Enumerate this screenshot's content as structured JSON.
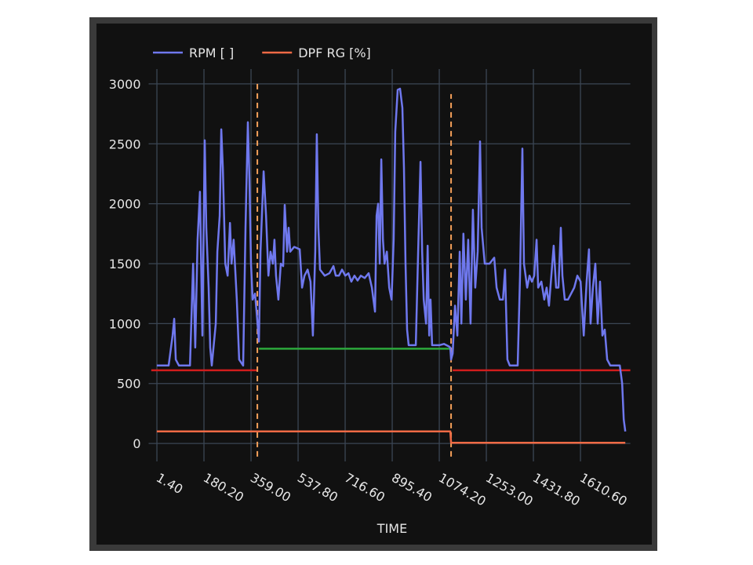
{
  "chart_data": {
    "type": "line",
    "xlabel": "TIME",
    "xlim": [
      -30,
      1800
    ],
    "ylim": [
      -150,
      3150
    ],
    "xticks": [
      {
        "value": 1.4,
        "label": "1.40"
      },
      {
        "value": 180.2,
        "label": "180.20"
      },
      {
        "value": 359,
        "label": "359.00"
      },
      {
        "value": 537.8,
        "label": "537.80"
      },
      {
        "value": 716.6,
        "label": "716.60"
      },
      {
        "value": 895.4,
        "label": "895.40"
      },
      {
        "value": 1074.2,
        "label": "1074.20"
      },
      {
        "value": 1253,
        "label": "1253.00"
      },
      {
        "value": 1431.8,
        "label": "1431.80"
      },
      {
        "value": 1610.6,
        "label": "1610.60"
      }
    ],
    "yticks": [
      0,
      500,
      1000,
      1500,
      2000,
      2500,
      3000
    ],
    "grid": true,
    "legend": "top-left",
    "series": [
      {
        "name": "RPM [ ]",
        "color": "#6f78ee",
        "x": [
          1,
          46,
          61,
          67,
          73,
          85,
          127,
          139,
          147,
          156,
          165,
          174,
          183,
          189,
          198,
          204,
          210,
          225,
          231,
          240,
          246,
          252,
          261,
          270,
          279,
          285,
          293,
          305,
          314,
          329,
          338,
          347,
          353,
          359,
          365,
          374,
          380,
          389,
          395,
          407,
          416,
          425,
          433,
          442,
          448,
          454,
          463,
          472,
          481,
          487,
          496,
          502,
          508,
          523,
          544,
          553,
          562,
          574,
          585,
          594,
          603,
          609,
          615,
          621,
          639,
          657,
          672,
          681,
          693,
          705,
          717,
          729,
          740,
          752,
          764,
          776,
          791,
          806,
          818,
          830,
          836,
          842,
          848,
          854,
          860,
          866,
          875,
          884,
          893,
          901,
          907,
          916,
          925,
          934,
          940,
          946,
          952,
          958,
          970,
          985,
          994,
          1003,
          1009,
          1015,
          1024,
          1030,
          1036,
          1041,
          1047,
          1059,
          1074,
          1092,
          1110,
          1116,
          1119,
          1125,
          1134,
          1143,
          1152,
          1158,
          1166,
          1175,
          1184,
          1193,
          1202,
          1211,
          1220,
          1229,
          1235,
          1247,
          1265,
          1283,
          1292,
          1304,
          1316,
          1324,
          1333,
          1342,
          1372,
          1381,
          1390,
          1396,
          1408,
          1417,
          1426,
          1435,
          1444,
          1450,
          1462,
          1473,
          1482,
          1491,
          1500,
          1509,
          1518,
          1527,
          1536,
          1542,
          1551,
          1563,
          1575,
          1587,
          1599,
          1611,
          1623,
          1634,
          1643,
          1649,
          1658,
          1667,
          1676,
          1685,
          1694,
          1703,
          1712,
          1724,
          1760,
          1769,
          1775,
          1781
        ],
        "values": [
          650,
          650,
          900,
          1040,
          700,
          650,
          650,
          1500,
          800,
          1700,
          2100,
          900,
          2530,
          1800,
          1300,
          800,
          650,
          1000,
          1600,
          1900,
          2620,
          2300,
          1500,
          1400,
          1840,
          1500,
          1700,
          1200,
          700,
          650,
          1800,
          2680,
          2200,
          1500,
          1200,
          1250,
          1100,
          850,
          1600,
          2270,
          1900,
          1400,
          1600,
          1500,
          1700,
          1400,
          1200,
          1500,
          1480,
          1990,
          1600,
          1800,
          1600,
          1640,
          1620,
          1300,
          1400,
          1450,
          1350,
          900,
          1600,
          2580,
          1800,
          1450,
          1400,
          1420,
          1480,
          1400,
          1400,
          1450,
          1400,
          1420,
          1350,
          1400,
          1360,
          1400,
          1380,
          1420,
          1300,
          1100,
          1900,
          2000,
          1500,
          2370,
          1700,
          1500,
          1600,
          1300,
          1200,
          1700,
          2600,
          2950,
          2960,
          2800,
          2300,
          1500,
          950,
          820,
          820,
          820,
          1600,
          2350,
          1600,
          1200,
          1000,
          1650,
          900,
          1200,
          820,
          820,
          820,
          830,
          810,
          800,
          700,
          750,
          1150,
          900,
          1600,
          1000,
          1750,
          1200,
          1700,
          1000,
          1950,
          1300,
          1600,
          2520,
          1800,
          1500,
          1500,
          1550,
          1300,
          1200,
          1200,
          1450,
          700,
          650,
          650,
          1400,
          2460,
          1500,
          1300,
          1400,
          1350,
          1400,
          1700,
          1300,
          1350,
          1200,
          1300,
          1150,
          1400,
          1650,
          1300,
          1300,
          1800,
          1400,
          1200,
          1200,
          1250,
          1300,
          1400,
          1350,
          900,
          1350,
          1620,
          1000,
          1300,
          1500,
          1000,
          1350,
          900,
          950,
          700,
          650,
          650,
          500,
          200,
          100
        ]
      },
      {
        "name": "DPF RG [%]",
        "color": "#ef6a45",
        "x": [
          1,
          1116,
          1119,
          1781
        ],
        "values": [
          100,
          100,
          5,
          5
        ]
      }
    ],
    "hlines": [
      {
        "y": 610,
        "x0": -20,
        "x1": 385,
        "color": "#d01c1c"
      },
      {
        "y": 790,
        "x0": 389,
        "x1": 1116,
        "color": "#2ca83c"
      },
      {
        "y": 610,
        "x0": 1125,
        "x1": 1800,
        "color": "#d01c1c"
      }
    ],
    "vlines": [
      {
        "x": 383,
        "y0": -110,
        "y1": 3020,
        "color": "#f5a05a"
      },
      {
        "x": 1119,
        "y0": -110,
        "y1": 2915,
        "color": "#f5a05a"
      }
    ]
  }
}
